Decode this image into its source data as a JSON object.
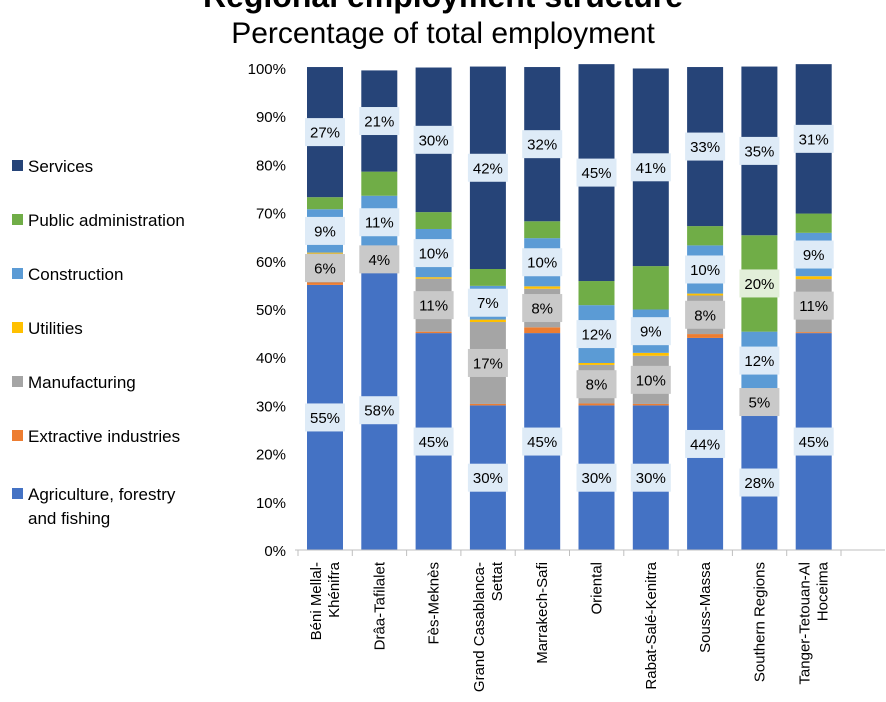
{
  "chart_data": {
    "type": "bar",
    "stacked": true,
    "percent_stacked": true,
    "title": "Regional employment structure",
    "subtitle": "Percentage of total employment",
    "categories": [
      "Béni Mellal-Khénifra",
      "Drâa-Tafilalet",
      "Fès-Meknès",
      "Grand Casablanca-Settat",
      "Marrakech-Safi",
      "Oriental",
      "Rabat-Salé-Kenitra",
      "Souss-Massa",
      "Southern Regions",
      "Tanger-Tetouan-Al Hoceima"
    ],
    "category_label_lines": [
      [
        "Béni Mellal-",
        "Khénifra"
      ],
      [
        "Drâa-Tafilalet"
      ],
      [
        "Fès-Meknès"
      ],
      [
        "Grand Casablanca-",
        "Settat"
      ],
      [
        "Marrakech-Safi"
      ],
      [
        "Oriental"
      ],
      [
        "Rabat-Salé-Kenitra"
      ],
      [
        "Souss-Massa"
      ],
      [
        "Southern Regions"
      ],
      [
        "Tanger-Tetouan-Al",
        "Hoceima"
      ]
    ],
    "series": [
      {
        "name": "Agriculture, forestry and fishing",
        "color": "#4472C4",
        "values": [
          55,
          58,
          45,
          30,
          45,
          30,
          30,
          44,
          28,
          45
        ],
        "labels": [
          "55%",
          "58%",
          "45%",
          "30%",
          "45%",
          "30%",
          "30%",
          "44%",
          "28%",
          "45%"
        ]
      },
      {
        "name": "Extractive industries",
        "color": "#ED7D31",
        "values": [
          0.5,
          0.3,
          0.3,
          0.3,
          1.2,
          0.4,
          0.3,
          0.8,
          0.2,
          0.2
        ],
        "labels": [
          "",
          "",
          "",
          "",
          "",
          "",
          "",
          "",
          "",
          ""
        ]
      },
      {
        "name": "Manufacturing",
        "color": "#A5A5A5",
        "values": [
          6,
          4,
          11,
          17,
          8,
          8,
          10,
          8,
          5,
          11
        ],
        "labels": [
          "6%",
          "4%",
          "11%",
          "17%",
          "8%",
          "8%",
          "10%",
          "8%",
          "5%",
          "11%"
        ]
      },
      {
        "name": "Utilities",
        "color": "#FFC000",
        "values": [
          0.2,
          0.2,
          0.3,
          0.5,
          0.5,
          0.4,
          0.6,
          0.4,
          0.1,
          0.6
        ],
        "labels": [
          "",
          "",
          "",
          "",
          "",
          "",
          "",
          "",
          "",
          ""
        ]
      },
      {
        "name": "Construction",
        "color": "#5B9BD5",
        "values": [
          9,
          11,
          10,
          7,
          10,
          12,
          9,
          10,
          12,
          9
        ],
        "labels": [
          "9%",
          "11%",
          "10%",
          "7%",
          "10%",
          "12%",
          "9%",
          "10%",
          "12%",
          "9%"
        ]
      },
      {
        "name": "Public administration",
        "color": "#70AD47",
        "values": [
          2.5,
          5,
          3.5,
          3.5,
          3.5,
          5,
          9,
          4,
          20,
          4
        ],
        "labels": [
          "",
          "",
          "",
          "",
          "",
          "",
          "",
          "",
          "20%",
          ""
        ]
      },
      {
        "name": "Services",
        "color": "#264478",
        "values": [
          27,
          21,
          30,
          42,
          32,
          45,
          41,
          33,
          35,
          31
        ],
        "labels": [
          "27%",
          "21%",
          "30%",
          "42%",
          "32%",
          "45%",
          "41%",
          "33%",
          "35%",
          "31%"
        ]
      }
    ],
    "legend_labels": [
      [
        "Services"
      ],
      [
        "Public administration"
      ],
      [
        "Construction"
      ],
      [
        "Utilities"
      ],
      [
        "Manufacturing"
      ],
      [
        "Extractive industries"
      ],
      [
        "Agriculture, forestry",
        "and fishing"
      ]
    ],
    "legend_colors": [
      "#264478",
      "#70AD47",
      "#5B9BD5",
      "#FFC000",
      "#A5A5A5",
      "#ED7D31",
      "#4472C4"
    ],
    "yticks": [
      "0%",
      "10%",
      "20%",
      "30%",
      "40%",
      "50%",
      "60%",
      "70%",
      "80%",
      "90%",
      "100%"
    ],
    "ylim": [
      0,
      100
    ],
    "xlabel": "",
    "ylabel": "",
    "grid": false,
    "legend_position": "left"
  }
}
